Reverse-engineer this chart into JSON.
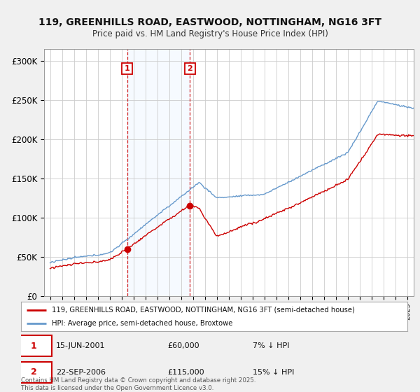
{
  "title": "119, GREENHILLS ROAD, EASTWOOD, NOTTINGHAM, NG16 3FT",
  "subtitle": "Price paid vs. HM Land Registry's House Price Index (HPI)",
  "legend_line1": "119, GREENHILLS ROAD, EASTWOOD, NOTTINGHAM, NG16 3FT (semi-detached house)",
  "legend_line2": "HPI: Average price, semi-detached house, Broxtowe",
  "footer": "Contains HM Land Registry data © Crown copyright and database right 2025.\nThis data is licensed under the Open Government Licence v3.0.",
  "purchase1_date": "15-JUN-2001",
  "purchase1_price": 60000,
  "purchase1_label": "7% ↓ HPI",
  "purchase2_date": "22-SEP-2006",
  "purchase2_price": 115000,
  "purchase2_label": "15% ↓ HPI",
  "vline1_x": 2001.46,
  "vline2_x": 2006.73,
  "dot1_x": 2001.46,
  "dot1_y": 60000,
  "dot2_x": 2006.73,
  "dot2_y": 115000,
  "ylim": [
    0,
    315000
  ],
  "xlim": [
    1994.5,
    2025.5
  ],
  "price_color": "#cc0000",
  "hpi_color": "#6699cc",
  "background_color": "#f0f0f0",
  "plot_bg_color": "#ffffff",
  "shade_color": "#ddeeff",
  "yticks": [
    0,
    50000,
    100000,
    150000,
    200000,
    250000,
    300000
  ],
  "ytick_labels": [
    "£0",
    "£50K",
    "£100K",
    "£150K",
    "£200K",
    "£250K",
    "£300K"
  ]
}
